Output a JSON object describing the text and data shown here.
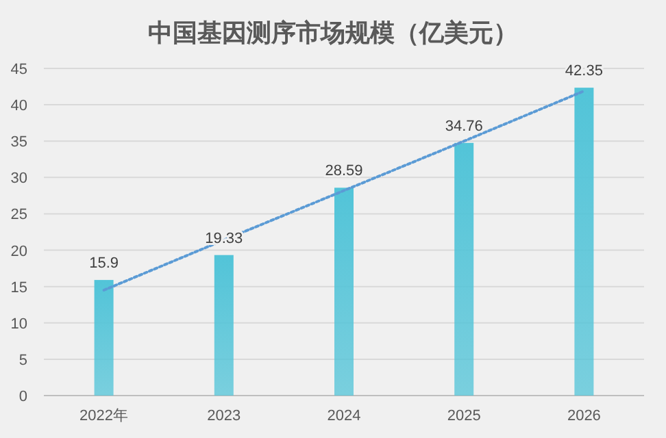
{
  "chart_data": {
    "type": "bar",
    "title": "中国基因测序市场规模（亿美元）",
    "categories": [
      "2022年",
      "2023",
      "2024",
      "2025",
      "2026"
    ],
    "series": [
      {
        "color": "#52c4d8",
        "values": [
          15.9,
          19.33,
          28.59,
          34.76,
          42.35
        ],
        "value_labels": [
          "15.9",
          "19.33",
          "28.59",
          "34.76",
          "42.35"
        ]
      },
      {
        "type": "line",
        "color": "#5b9bd5",
        "line_style": "dotted",
        "values": [
          14.5,
          21.4,
          28.2,
          35.0,
          41.9
        ]
      }
    ],
    "ylim": [
      0,
      45
    ],
    "yticks": [
      0,
      5,
      10,
      15,
      20,
      25,
      30,
      35,
      40,
      45
    ],
    "grid": "y"
  }
}
